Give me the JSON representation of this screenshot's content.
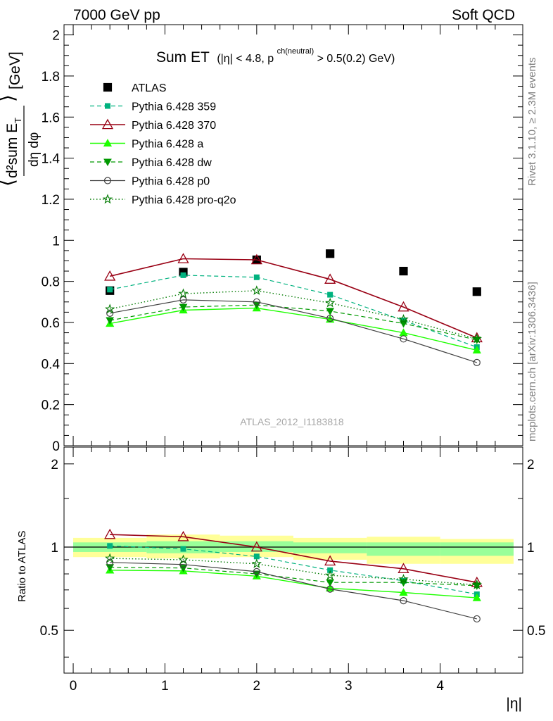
{
  "header": {
    "left": "7000 GeV pp",
    "right": "Soft QCD"
  },
  "side_labels": {
    "rivet": "Rivet 3.1.10, ≥ 2.3M events",
    "mcplots": "mcplots.cern.ch [arXiv:1306.3436]"
  },
  "title": {
    "main": "Sum ET",
    "cond": "(|η| < 4.8, p",
    "sup": "ch(neutral)",
    "tail": " > 0.5(0.2) GeV)"
  },
  "ylabel_top": {
    "num": "d²sum E",
    "sub": "T",
    "den": "dη dφ",
    "unit": "[GeV]"
  },
  "ylabel_bottom": "Ratio to ATLAS",
  "xlabel": "|η|",
  "watermark": "ATLAS_2012_I1183818",
  "colors": {
    "atlas": "#000000",
    "p359": "#00b27f",
    "p370": "#990014",
    "pa": "#1eff00",
    "pdw": "#009900",
    "pp0": "#404040",
    "pq2o": "#007a00",
    "band_outer": "#ffff99",
    "band_inner": "#99ff99"
  },
  "chart_data": [
    {
      "type": "line",
      "panel": "main",
      "x": [
        0.4,
        1.2,
        2.0,
        2.8,
        3.6,
        4.4
      ],
      "xlim": [
        -0.1,
        4.9
      ],
      "ylim": [
        0,
        2.05
      ],
      "xticks": [
        0,
        1,
        2,
        3,
        4
      ],
      "yticks": [
        "0",
        "0.2",
        "0.4",
        "0.6",
        "0.8",
        "1",
        "1.2",
        "1.4",
        "1.6",
        "1.8",
        "2"
      ],
      "legend_position": "top-left",
      "series": [
        {
          "name": "ATLAS",
          "style": "data",
          "values": [
            0.755,
            0.845,
            0.905,
            0.935,
            0.85,
            0.75
          ]
        },
        {
          "name": "Pythia 6.428 359",
          "style": "p359",
          "values": [
            0.76,
            0.83,
            0.82,
            0.735,
            0.61,
            0.48
          ]
        },
        {
          "name": "Pythia 6.428 370",
          "style": "p370",
          "values": [
            0.825,
            0.91,
            0.905,
            0.81,
            0.675,
            0.525
          ]
        },
        {
          "name": "Pythia 6.428 a",
          "style": "pa",
          "values": [
            0.595,
            0.66,
            0.67,
            0.615,
            0.55,
            0.465
          ]
        },
        {
          "name": "Pythia 6.428 dw",
          "style": "pdw",
          "values": [
            0.61,
            0.675,
            0.685,
            0.655,
            0.595,
            0.515
          ]
        },
        {
          "name": "Pythia 6.428 p0",
          "style": "pp0",
          "values": [
            0.645,
            0.71,
            0.7,
            0.62,
            0.52,
            0.405
          ]
        },
        {
          "name": "Pythia 6.428 pro-q2o",
          "style": "pq2o",
          "values": [
            0.665,
            0.74,
            0.755,
            0.695,
            0.615,
            0.52
          ]
        }
      ]
    },
    {
      "type": "line",
      "panel": "ratio",
      "x": [
        0.4,
        1.2,
        2.0,
        2.8,
        3.6,
        4.4
      ],
      "xlim": [
        -0.1,
        4.9
      ],
      "ylim": [
        0.35,
        2.3
      ],
      "yticks": [
        "0.5",
        "1",
        "2"
      ],
      "reference_line": 1,
      "bands": {
        "edges": [
          0,
          0.8,
          1.6,
          2.4,
          3.2,
          4.0,
          4.8
        ],
        "outer": [
          [
            0.92,
            1.08
          ],
          [
            0.91,
            1.11
          ],
          [
            0.92,
            1.1
          ],
          [
            0.9,
            1.08
          ],
          [
            0.87,
            1.09
          ],
          [
            0.87,
            1.07
          ]
        ],
        "inner": [
          [
            0.96,
            1.04
          ],
          [
            0.95,
            1.05
          ],
          [
            0.96,
            1.05
          ],
          [
            0.95,
            1.04
          ],
          [
            0.93,
            1.04
          ],
          [
            0.93,
            1.04
          ]
        ]
      },
      "series": [
        {
          "name": "Pythia 6.428 359",
          "style": "p359",
          "values": [
            1.01,
            0.985,
            0.925,
            0.825,
            0.755,
            0.675
          ]
        },
        {
          "name": "Pythia 6.428 370",
          "style": "p370",
          "values": [
            1.11,
            1.09,
            1.0,
            0.89,
            0.835,
            0.745
          ]
        },
        {
          "name": "Pythia 6.428 a",
          "style": "pa",
          "values": [
            0.825,
            0.82,
            0.785,
            0.71,
            0.685,
            0.655
          ]
        },
        {
          "name": "Pythia 6.428 dw",
          "style": "pdw",
          "values": [
            0.845,
            0.84,
            0.8,
            0.745,
            0.745,
            0.725
          ]
        },
        {
          "name": "Pythia 6.428 p0",
          "style": "pp0",
          "values": [
            0.88,
            0.865,
            0.815,
            0.705,
            0.64,
            0.55
          ]
        },
        {
          "name": "Pythia 6.428 pro-q2o",
          "style": "pq2o",
          "values": [
            0.91,
            0.9,
            0.87,
            0.79,
            0.765,
            0.73
          ]
        }
      ]
    }
  ]
}
